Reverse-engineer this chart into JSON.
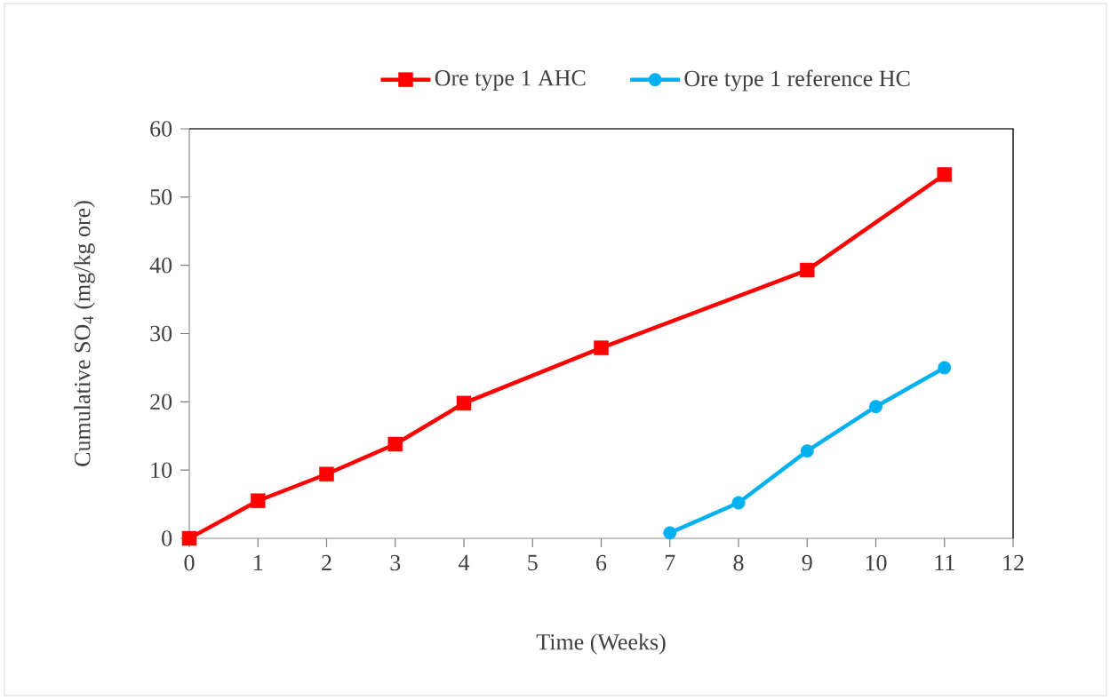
{
  "chart_data": {
    "type": "line",
    "xlabel": "Time (Weeks)",
    "ylabel": "Cumulative SO$_{4}$ (mg/kg ore)",
    "xlim": [
      0,
      12
    ],
    "xticks": [
      0,
      1,
      2,
      3,
      4,
      5,
      6,
      7,
      8,
      9,
      10,
      11,
      12
    ],
    "ylim": [
      0,
      60
    ],
    "yticks": [
      0,
      10,
      20,
      30,
      40,
      50,
      60
    ],
    "grid": false,
    "legend": "top",
    "line_style": "solid",
    "series": [
      {
        "name": "Ore type 1 AHC",
        "color": "#ff0000",
        "marker": "square",
        "x": [
          0,
          1,
          2,
          3,
          4,
          6,
          9,
          11
        ],
        "values": [
          0,
          5.5,
          9.4,
          13.8,
          19.8,
          27.9,
          39.3,
          53.3
        ]
      },
      {
        "name": "Ore type 1 reference HC",
        "color": "#00b0f0",
        "marker": "circle",
        "x": [
          7,
          8,
          9,
          10,
          11
        ],
        "values": [
          0.8,
          5.2,
          12.8,
          19.3,
          25.0
        ]
      }
    ]
  }
}
